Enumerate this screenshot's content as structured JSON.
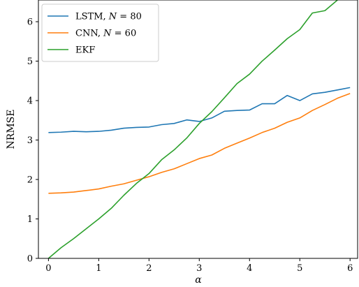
{
  "chart_data": {
    "type": "line",
    "xlabel": "α",
    "ylabel": "NRMSE",
    "xlim": [
      -0.2,
      6.15
    ],
    "ylim": [
      0,
      6.55
    ],
    "xticks": [
      0,
      1,
      2,
      3,
      4,
      5,
      6
    ],
    "yticks": [
      0,
      1,
      2,
      3,
      4,
      5,
      6
    ],
    "grid": false,
    "legend_position": "top-left",
    "series": [
      {
        "name": "LSTM, N = 80",
        "name_parts": [
          "LSTM, ",
          "N",
          " = 80"
        ],
        "color": "#1f77b4",
        "x": [
          0,
          0.25,
          0.5,
          0.75,
          1.0,
          1.25,
          1.5,
          1.75,
          2.0,
          2.25,
          2.5,
          2.75,
          3.0,
          3.25,
          3.5,
          3.75,
          4.0,
          4.25,
          4.5,
          4.75,
          5.0,
          5.25,
          5.5,
          5.75,
          6.0
        ],
        "y": [
          3.19,
          3.2,
          3.22,
          3.21,
          3.22,
          3.25,
          3.3,
          3.32,
          3.33,
          3.39,
          3.42,
          3.51,
          3.47,
          3.56,
          3.73,
          3.75,
          3.76,
          3.92,
          3.92,
          4.13,
          4.0,
          4.17,
          4.21,
          4.27,
          4.33
        ]
      },
      {
        "name": "CNN, N = 60",
        "name_parts": [
          "CNN, ",
          "N",
          " = 60"
        ],
        "color": "#ff7f0e",
        "x": [
          0,
          0.25,
          0.5,
          0.75,
          1.0,
          1.25,
          1.5,
          1.75,
          2.0,
          2.25,
          2.5,
          2.75,
          3.0,
          3.25,
          3.5,
          3.75,
          4.0,
          4.25,
          4.5,
          4.75,
          5.0,
          5.25,
          5.5,
          5.75,
          6.0
        ],
        "y": [
          1.65,
          1.66,
          1.68,
          1.72,
          1.76,
          1.83,
          1.89,
          1.98,
          2.07,
          2.18,
          2.27,
          2.4,
          2.53,
          2.62,
          2.79,
          2.92,
          3.05,
          3.19,
          3.3,
          3.45,
          3.56,
          3.75,
          3.9,
          4.06,
          4.18
        ]
      },
      {
        "name": "EKF",
        "name_parts": [
          "EKF",
          "",
          ""
        ],
        "color": "#2ca02c",
        "x": [
          0,
          0.25,
          0.5,
          0.75,
          1.0,
          1.25,
          1.5,
          1.75,
          2.0,
          2.25,
          2.5,
          2.75,
          3.0,
          3.25,
          3.5,
          3.75,
          4.0,
          4.25,
          4.5,
          4.75,
          5.0,
          5.25,
          5.5,
          5.75,
          6.0
        ],
        "y": [
          0.0,
          0.27,
          0.5,
          0.75,
          1.0,
          1.27,
          1.6,
          1.9,
          2.15,
          2.5,
          2.75,
          3.05,
          3.42,
          3.72,
          4.07,
          4.43,
          4.67,
          5.0,
          5.28,
          5.57,
          5.8,
          6.22,
          6.28,
          6.55,
          6.75
        ]
      }
    ]
  }
}
